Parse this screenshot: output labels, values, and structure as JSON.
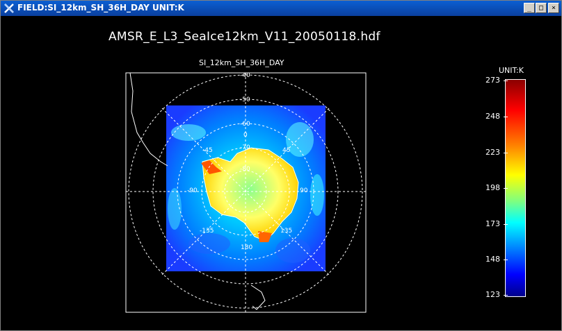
{
  "window": {
    "title": "FIELD:SI_12km_SH_36H_DAY  UNIT:K",
    "minimize_label": "_",
    "maximize_label": "□",
    "close_label": "×"
  },
  "plot": {
    "file_title": "AMSR_E_L3_SeaIce12km_V11_20050118.hdf",
    "field_title": "SI_12km_SH_36H_DAY",
    "lat_labels": [
      "-40",
      "-50",
      "-60",
      "-70",
      "-80"
    ],
    "lon_labels": [
      "0",
      "45",
      "-45",
      "90",
      "-90",
      "-135",
      "135",
      "180"
    ]
  },
  "colorbar": {
    "unit_label": "UNIT:K",
    "ticks": [
      "273",
      "248",
      "223",
      "198",
      "173",
      "148",
      "123"
    ]
  }
}
